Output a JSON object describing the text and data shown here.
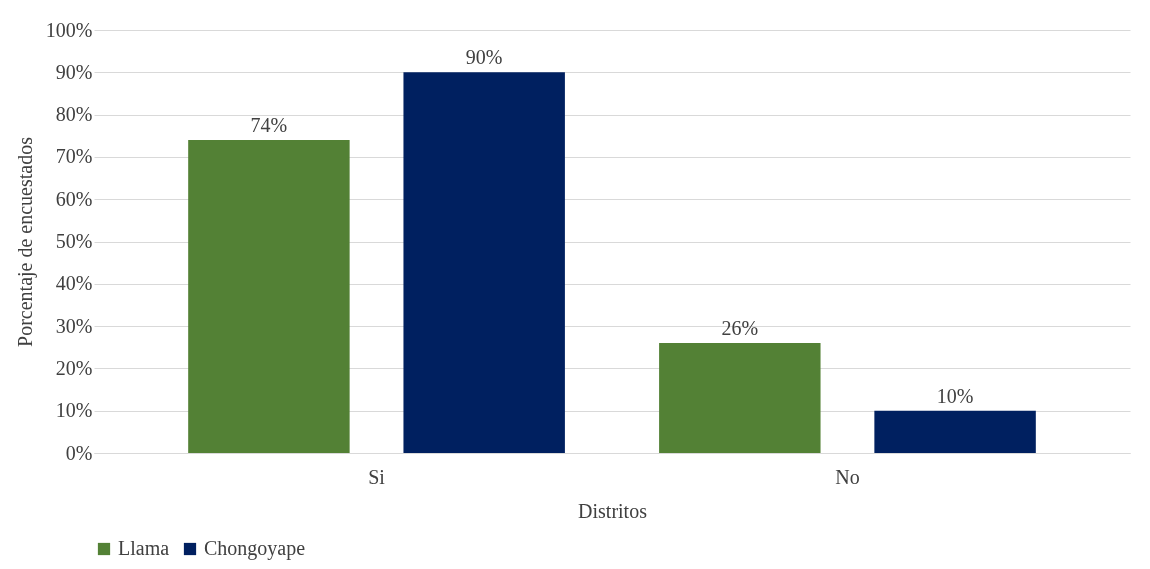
{
  "chart_data": {
    "type": "bar",
    "xlabel": "Distritos",
    "ylabel": "Porcentaje de encuestados",
    "categories": [
      "Si",
      "No"
    ],
    "series": [
      {
        "name": "Llama",
        "color": "#538135",
        "values": [
          74,
          26
        ],
        "value_labels": [
          "74%",
          "26%"
        ]
      },
      {
        "name": "Chongoyape",
        "color": "#002060",
        "values": [
          90,
          10
        ],
        "value_labels": [
          "90%",
          "10%"
        ]
      }
    ],
    "ylim": [
      0,
      100
    ],
    "yticks": [
      {
        "value": 0,
        "label": "0%"
      },
      {
        "value": 10,
        "label": "10%"
      },
      {
        "value": 20,
        "label": "20%"
      },
      {
        "value": 30,
        "label": "30%"
      },
      {
        "value": 40,
        "label": "40%"
      },
      {
        "value": 50,
        "label": "50%"
      },
      {
        "value": 60,
        "label": "60%"
      },
      {
        "value": 70,
        "label": "70%"
      },
      {
        "value": 80,
        "label": "80%"
      },
      {
        "value": 90,
        "label": "90%"
      },
      {
        "value": 100,
        "label": "100%"
      }
    ],
    "grid": "y",
    "legend": "bottom"
  }
}
